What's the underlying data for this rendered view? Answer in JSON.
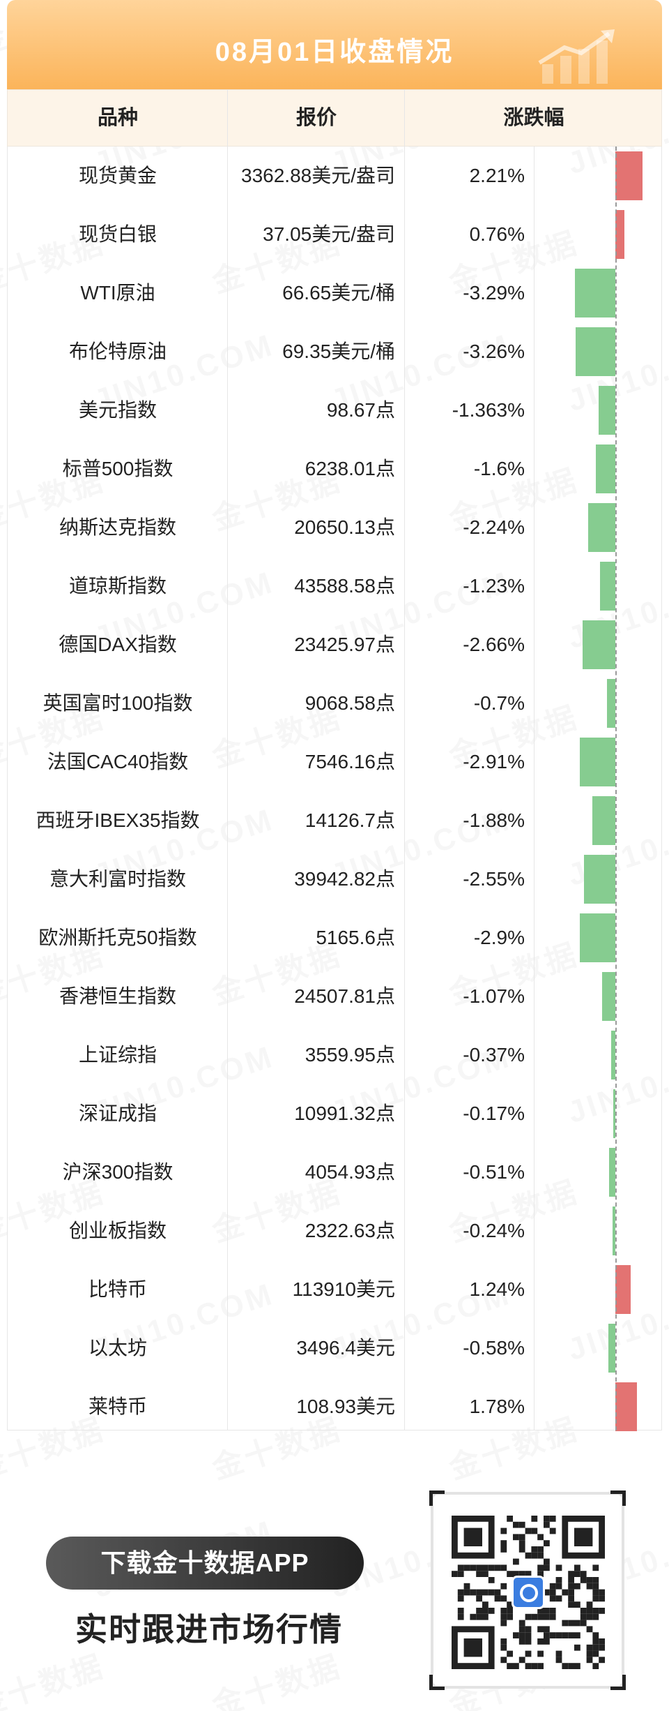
{
  "title": "08月01日收盘情况",
  "headers": {
    "name": "品种",
    "price": "报价",
    "change": "涨跌幅"
  },
  "watermark": {
    "cn": "金十数据",
    "en": "JIN10.COM"
  },
  "colors": {
    "up": "#e37372",
    "down": "#86cc90",
    "accent": "#fbb45a"
  },
  "rows": [
    {
      "name": "现货黄金",
      "price": "3362.88美元/盎司",
      "change": "2.21%"
    },
    {
      "name": "现货白银",
      "price": "37.05美元/盎司",
      "change": "0.76%"
    },
    {
      "name": "WTI原油",
      "price": "66.65美元/桶",
      "change": "-3.29%"
    },
    {
      "name": "布伦特原油",
      "price": "69.35美元/桶",
      "change": "-3.26%"
    },
    {
      "name": "美元指数",
      "price": "98.67点",
      "change": "-1.363%"
    },
    {
      "name": "标普500指数",
      "price": "6238.01点",
      "change": "-1.6%"
    },
    {
      "name": "纳斯达克指数",
      "price": "20650.13点",
      "change": "-2.24%"
    },
    {
      "name": "道琼斯指数",
      "price": "43588.58点",
      "change": "-1.23%"
    },
    {
      "name": "德国DAX指数",
      "price": "23425.97点",
      "change": "-2.66%"
    },
    {
      "name": "英国富时100指数",
      "price": "9068.58点",
      "change": "-0.7%"
    },
    {
      "name": "法国CAC40指数",
      "price": "7546.16点",
      "change": "-2.91%"
    },
    {
      "name": "西班牙IBEX35指数",
      "price": "14126.7点",
      "change": "-1.88%"
    },
    {
      "name": "意大利富时指数",
      "price": "39942.82点",
      "change": "-2.55%"
    },
    {
      "name": "欧洲斯托克50指数",
      "price": "5165.6点",
      "change": "-2.9%"
    },
    {
      "name": "香港恒生指数",
      "price": "24507.81点",
      "change": "-1.07%"
    },
    {
      "name": "上证综指",
      "price": "3559.95点",
      "change": "-0.37%"
    },
    {
      "name": "深证成指",
      "price": "10991.32点",
      "change": "-0.17%"
    },
    {
      "name": "沪深300指数",
      "price": "4054.93点",
      "change": "-0.51%"
    },
    {
      "name": "创业板指数",
      "price": "2322.63点",
      "change": "-0.24%"
    },
    {
      "name": "比特币",
      "price": "113910美元",
      "change": "1.24%"
    },
    {
      "name": "以太坊",
      "price": "3496.4美元",
      "change": "-0.58%"
    },
    {
      "name": "莱特币",
      "price": "108.93美元",
      "change": "1.78%"
    }
  ],
  "chart_data": {
    "type": "bar",
    "categories": [
      "现货黄金",
      "现货白银",
      "WTI原油",
      "布伦特原油",
      "美元指数",
      "标普500指数",
      "纳斯达克指数",
      "道琼斯指数",
      "德国DAX指数",
      "英国富时100指数",
      "法国CAC40指数",
      "西班牙IBEX35指数",
      "意大利富时指数",
      "欧洲斯托克50指数",
      "香港恒生指数",
      "上证综指",
      "深证成指",
      "沪深300指数",
      "创业板指数",
      "比特币",
      "以太坊",
      "莱特币"
    ],
    "values": [
      2.21,
      0.76,
      -3.29,
      -3.26,
      -1.363,
      -1.6,
      -2.24,
      -1.23,
      -2.66,
      -0.7,
      -2.91,
      -1.88,
      -2.55,
      -2.9,
      -1.07,
      -0.37,
      -0.17,
      -0.51,
      -0.24,
      1.24,
      -0.58,
      1.78
    ],
    "orientation": "horizontal",
    "unit": "%"
  },
  "promo": {
    "button": "下载金十数据APP",
    "tagline": "实时跟进市场行情"
  }
}
